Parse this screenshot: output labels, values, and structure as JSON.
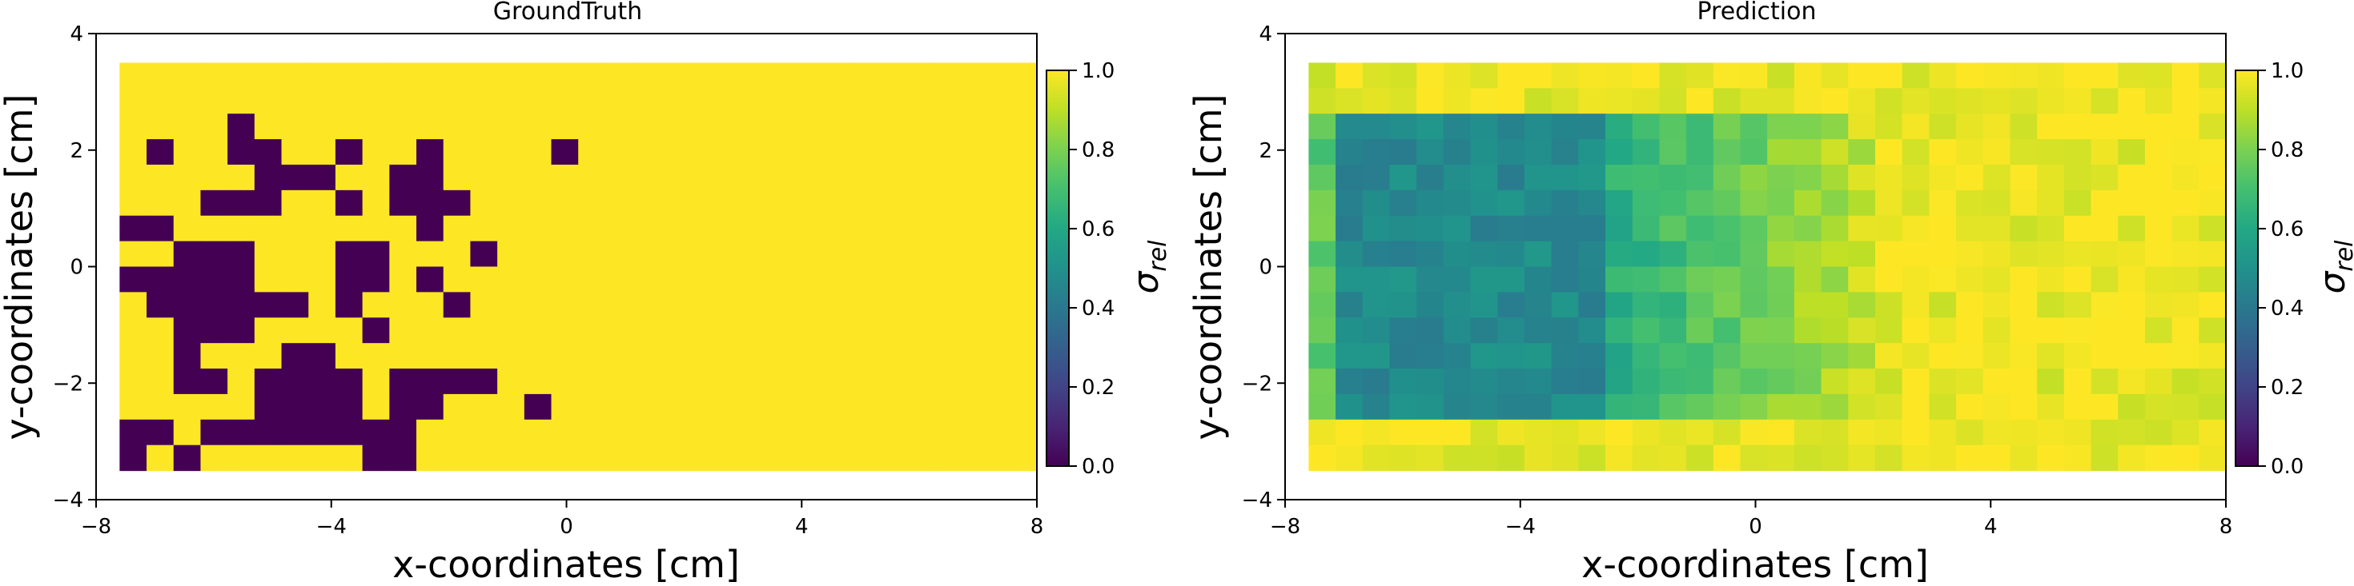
{
  "chart_data": [
    {
      "type": "heatmap",
      "title": "GroundTruth",
      "xlabel": "x-coordinates [cm]",
      "ylabel": "y-coordinates [cm]",
      "xlim": [
        -8,
        8
      ],
      "ylim": [
        -4,
        4
      ],
      "xticks": [
        -8,
        -4,
        0,
        4,
        8
      ],
      "yticks": [
        -4,
        -2,
        0,
        2,
        4
      ],
      "cells": {
        "x_start": -7.6,
        "x_end": 8.0,
        "y_start": -3.5,
        "y_end": 3.5,
        "cols": 34,
        "rows": 16
      },
      "grid": [
        "1111111111111111111111111111111111",
        "1111111111111111111111111111111111",
        "1111011111111111111111111111111111",
        "1011001101101111011111111111111111",
        "1111100011001111111111111111111111",
        "1110001101000111111111111111111111",
        "0011111111101111111111111111111111",
        "1100011100111011111111111111111111",
        "0000011100101111111111111111111111",
        "1000000101110111111111111111111111",
        "1100011110111111111111111111111111",
        "1101110011111111111111111111111111",
        "1100100001000011111111111111111111",
        "1111100001001110111111111111111111",
        "0010000000011111111111111111111111",
        "0101111110011111111111111111111111"
      ],
      "colorbar": {
        "label": "σrel",
        "ticks": [
          0.0,
          0.2,
          0.4,
          0.6,
          0.8,
          1.0
        ],
        "tick_labels": [
          "0.0",
          "0.2",
          "0.4",
          "0.6",
          "0.8",
          "1.0"
        ]
      }
    },
    {
      "type": "heatmap",
      "title": "Prediction",
      "xlabel": "x-coordinates [cm]",
      "ylabel": "y-coordinates [cm]",
      "xlim": [
        -8,
        8
      ],
      "ylim": [
        -4,
        4
      ],
      "xticks": [
        -8,
        -4,
        0,
        4,
        8
      ],
      "yticks": [
        -4,
        -2,
        0,
        2,
        4
      ],
      "cells": {
        "x_start": -7.6,
        "x_end": 8.0,
        "y_start": -3.5,
        "y_end": 3.5,
        "cols": 34,
        "rows": 16
      },
      "value_model": {
        "base": 0.97,
        "region": {
          "x_min": -7.0,
          "x_max": -2.5,
          "y_min": -2.8,
          "y_max": 2.6,
          "value": 0.47
        },
        "transition": {
          "x_start": -2.5,
          "x_end": 2.0,
          "value_start": 0.62,
          "value_end": 0.92
        },
        "edge_value": 0.9
      },
      "colorbar": {
        "label": "σrel",
        "ticks": [
          0.0,
          0.2,
          0.4,
          0.6,
          0.8,
          1.0
        ],
        "tick_labels": [
          "0.0",
          "0.2",
          "0.4",
          "0.6",
          "0.8",
          "1.0"
        ]
      }
    }
  ]
}
